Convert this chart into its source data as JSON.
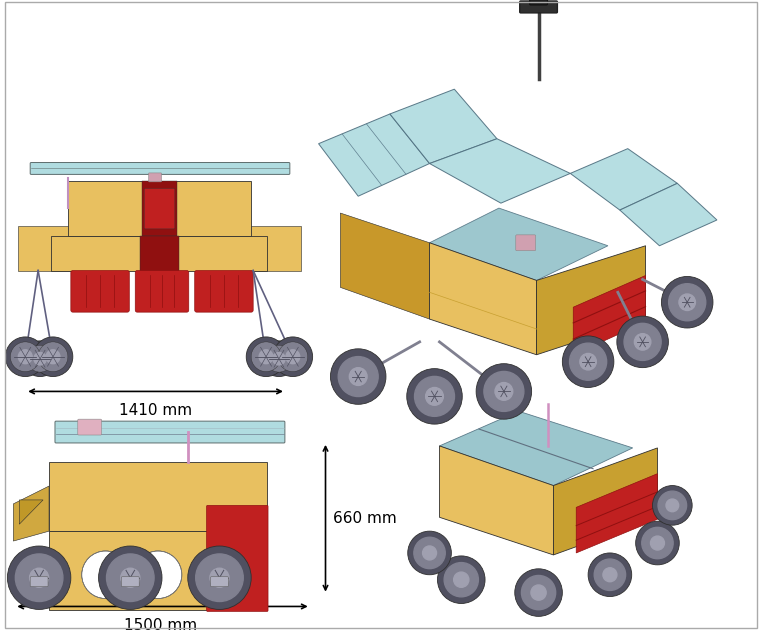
{
  "background_color": "#ffffff",
  "fig_width": 7.62,
  "fig_height": 6.36,
  "dpi": 100,
  "rover_gold": "#e8c060",
  "rover_gold_dark": "#c8a030",
  "rover_red": "#c02020",
  "rover_red_dark": "#901010",
  "panel_blue": "#b0dce0",
  "panel_blue_dark": "#90c0c8",
  "wheel_dark": "#505060",
  "wheel_mid": "#808090",
  "wheel_light": "#a0a0b0",
  "edge_color": "#303030",
  "annotation_color": "#000000",
  "annotation_fontsize": 11,
  "dim_1410_text": "1410 mm",
  "dim_1500_text": "1500 mm",
  "dim_660_text": "660 mm"
}
